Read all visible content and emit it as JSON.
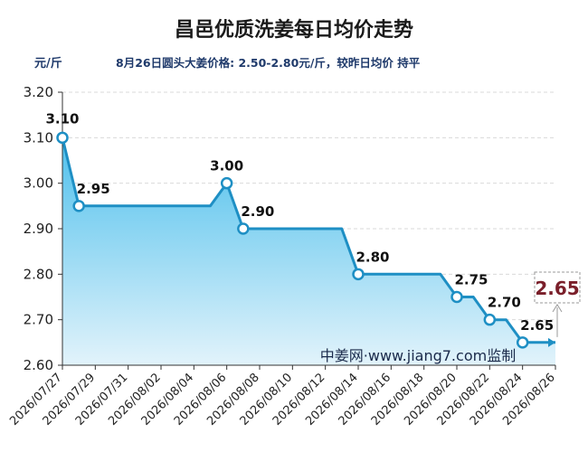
{
  "title": "昌邑优质洗姜每日均价走势",
  "unit": "元/斤",
  "subtitle": "8月26日圆头大姜价格: 2.50-2.80元/斤，较昨日均价 持平",
  "watermark": "中姜网·www.jiang7.com监制",
  "latest_label": "2.65",
  "colors": {
    "line": "#1e8fc4",
    "area_top": "#4fc0ec",
    "area_bottom": "#e2f3fb",
    "marker_fill": "#ffffff",
    "latest_text": "#7a1f2a",
    "title": "#1a1a1a",
    "subtitle": "#1f3a6b"
  },
  "chart_data": {
    "type": "area",
    "title": "昌邑优质洗姜每日均价走势",
    "ylabel": "元/斤",
    "ylim": [
      2.6,
      3.2
    ],
    "yticks": [
      "2.60",
      "2.70",
      "2.80",
      "2.90",
      "3.00",
      "3.10",
      "3.20"
    ],
    "xlim": [
      "2026-07-27",
      "2026-08-26"
    ],
    "xticks": [
      "2026/07/27",
      "2026/07/29",
      "2026/07/31",
      "2026/08/02",
      "2026/08/04",
      "2026/08/06",
      "2026/08/08",
      "2026/08/10",
      "2026/08/12",
      "2026/08/14",
      "2026/08/16",
      "2026/08/18",
      "2026/08/20",
      "2026/08/22",
      "2026/08/24",
      "2026/08/26"
    ],
    "grid": true,
    "series": [
      {
        "points": [
          {
            "x": "2026-07-27",
            "y": 3.1,
            "label": "3.10",
            "marker": true
          },
          {
            "x": "2026-07-28",
            "y": 2.95,
            "label": "2.95",
            "marker": true
          },
          {
            "x": "2026-08-05",
            "y": 2.95,
            "label": "",
            "marker": false
          },
          {
            "x": "2026-08-06",
            "y": 3.0,
            "label": "3.00",
            "marker": true
          },
          {
            "x": "2026-08-07",
            "y": 2.9,
            "label": "2.90",
            "marker": true
          },
          {
            "x": "2026-08-13",
            "y": 2.9,
            "label": "",
            "marker": false
          },
          {
            "x": "2026-08-14",
            "y": 2.8,
            "label": "2.80",
            "marker": true
          },
          {
            "x": "2026-08-19",
            "y": 2.8,
            "label": "",
            "marker": false
          },
          {
            "x": "2026-08-20",
            "y": 2.75,
            "label": "2.75",
            "marker": true
          },
          {
            "x": "2026-08-21",
            "y": 2.75,
            "label": "",
            "marker": false
          },
          {
            "x": "2026-08-22",
            "y": 2.7,
            "label": "2.70",
            "marker": true
          },
          {
            "x": "2026-08-23",
            "y": 2.7,
            "label": "",
            "marker": false
          },
          {
            "x": "2026-08-24",
            "y": 2.65,
            "label": "2.65",
            "marker": true
          },
          {
            "x": "2026-08-26",
            "y": 2.65,
            "label": "",
            "marker": false
          }
        ]
      }
    ]
  }
}
